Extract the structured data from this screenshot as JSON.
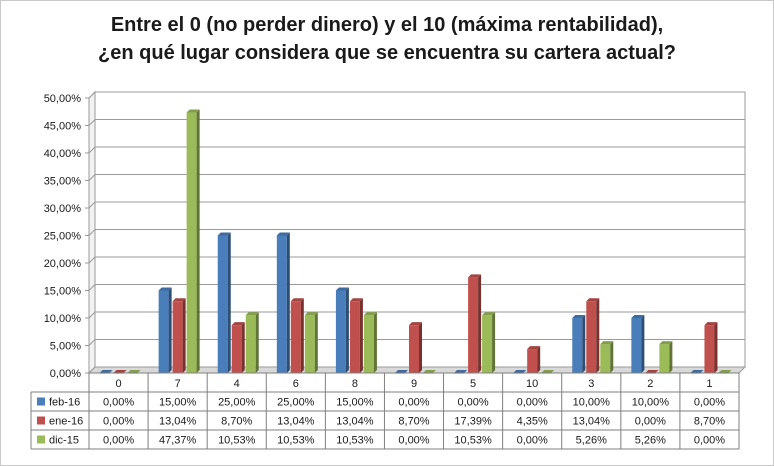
{
  "chart_data": {
    "type": "bar",
    "title_lines": [
      "Entre el 0 (no perder dinero) y el 10 (máxima rentabilidad),",
      "¿en qué lugar considera que se encuentra su cartera actual?"
    ],
    "categories": [
      "0",
      "7",
      "4",
      "6",
      "8",
      "9",
      "5",
      "10",
      "3",
      "2",
      "1"
    ],
    "series": [
      {
        "name": "feb-16",
        "color": "#4a7ebb",
        "values": [
          0.0,
          15.0,
          25.0,
          25.0,
          15.0,
          0.0,
          0.0,
          0.0,
          10.0,
          10.0,
          0.0
        ],
        "labels": [
          "0,00%",
          "15,00%",
          "25,00%",
          "25,00%",
          "15,00%",
          "0,00%",
          "0,00%",
          "0,00%",
          "10,00%",
          "10,00%",
          "0,00%"
        ]
      },
      {
        "name": "ene-16",
        "color": "#c0504d",
        "values": [
          0.0,
          13.04,
          8.7,
          13.04,
          13.04,
          8.7,
          17.39,
          4.35,
          13.04,
          0.0,
          8.7
        ],
        "labels": [
          "0,00%",
          "13,04%",
          "8,70%",
          "13,04%",
          "13,04%",
          "8,70%",
          "17,39%",
          "4,35%",
          "13,04%",
          "0,00%",
          "8,70%"
        ]
      },
      {
        "name": "dic-15",
        "color": "#9bbb59",
        "values": [
          0.0,
          47.37,
          10.53,
          10.53,
          10.53,
          0.0,
          10.53,
          0.0,
          5.26,
          5.26,
          0.0
        ],
        "labels": [
          "0,00%",
          "47,37%",
          "10,53%",
          "10,53%",
          "10,53%",
          "0,00%",
          "10,53%",
          "0,00%",
          "5,26%",
          "5,26%",
          "0,00%"
        ]
      }
    ],
    "y_ticks": [
      "0,00%",
      "5,00%",
      "10,00%",
      "15,00%",
      "20,00%",
      "25,00%",
      "30,00%",
      "35,00%",
      "40,00%",
      "45,00%",
      "50,00%"
    ],
    "ylim": [
      0,
      50
    ],
    "grid": true,
    "legend": "data-table-left",
    "style": "3d-clustered-column-with-data-table"
  }
}
